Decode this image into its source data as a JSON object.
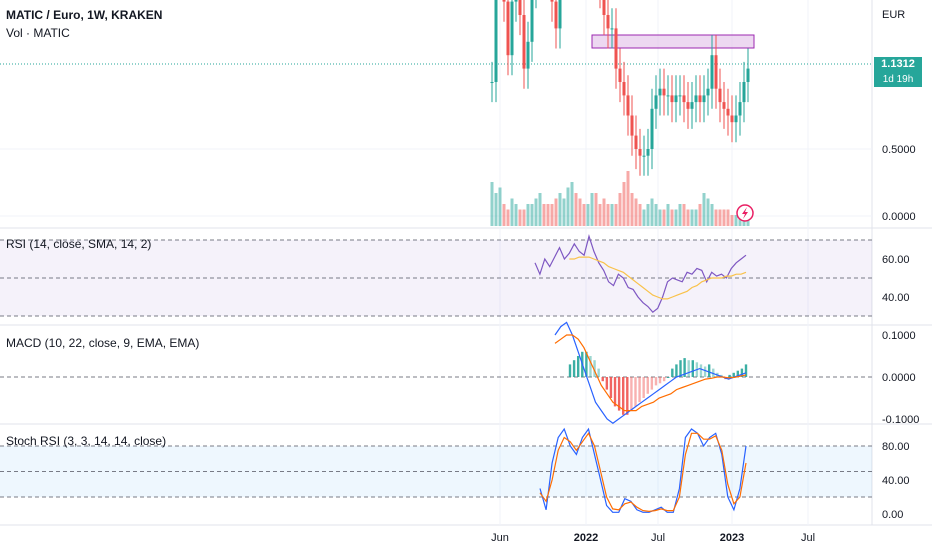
{
  "header": {
    "symbol_line": "MATIC / Euro, 1W, KRAKEN",
    "volume_label": "Vol · MATIC"
  },
  "price_tag": {
    "price": "1.1312",
    "countdown": "1d 19h"
  },
  "colors": {
    "up": "#26a69a",
    "down": "#ef5350",
    "rsi": "#7e57c2",
    "rsi_ma": "#f9c24a",
    "macd": "#2962ff",
    "signal": "#ff6d00",
    "stoch_k": "#2962ff",
    "stoch_d": "#ff6d00",
    "zone": "#e1bee7"
  },
  "chart_data": [
    {
      "type": "candlestick",
      "name_panel": "price",
      "currency": "EUR",
      "y_ticks": [
        "0.5000",
        "0.0000"
      ],
      "x_ticks": [
        "Jun",
        "2022",
        "Jul",
        "2023",
        "Jul"
      ],
      "last_price": 1.1312,
      "resistance_zone": [
        1.25,
        1.45
      ],
      "candles_close_approx": [
        1.0,
        1.8,
        2.2,
        1.6,
        1.2,
        1.6,
        1.9,
        1.5,
        1.1,
        1.3,
        1.7,
        1.9,
        2.3,
        2.2,
        1.9,
        1.6,
        1.4,
        1.8,
        2.1,
        2.3,
        2.5,
        2.2,
        2.0,
        1.8,
        2.0,
        2.2,
        1.9,
        1.7,
        1.5,
        1.4,
        1.4,
        1.1,
        1.0,
        0.9,
        0.75,
        0.6,
        0.5,
        0.45,
        0.45,
        0.5,
        0.8,
        0.9,
        0.95,
        0.9,
        0.9,
        0.85,
        0.9,
        0.9,
        0.85,
        0.8,
        0.85,
        0.9,
        0.85,
        0.9,
        0.95,
        1.2,
        0.95,
        0.85,
        0.8,
        0.75,
        0.7,
        0.75,
        0.85,
        1.0,
        1.1
      ],
      "volume_approx": [
        0.4,
        0.3,
        0.35,
        0.2,
        0.15,
        0.25,
        0.2,
        0.15,
        0.15,
        0.2,
        0.2,
        0.25,
        0.3,
        0.2,
        0.2,
        0.2,
        0.25,
        0.3,
        0.25,
        0.35,
        0.4,
        0.3,
        0.25,
        0.2,
        0.2,
        0.3,
        0.3,
        0.2,
        0.25,
        0.2,
        0.2,
        0.2,
        0.3,
        0.4,
        0.5,
        0.3,
        0.25,
        0.2,
        0.15,
        0.2,
        0.25,
        0.2,
        0.15,
        0.15,
        0.2,
        0.15,
        0.15,
        0.2,
        0.2,
        0.15,
        0.15,
        0.15,
        0.2,
        0.3,
        0.25,
        0.2,
        0.15,
        0.15,
        0.15,
        0.15,
        0.1,
        0.1,
        0.1,
        0.1,
        0.1
      ]
    },
    {
      "type": "line",
      "name_panel": "rsi",
      "title": "RSI (14, close, SMA, 14, 2)",
      "y_ticks": [
        "60.00",
        "40.00"
      ],
      "ylim": [
        30,
        75
      ],
      "bands": [
        70,
        50,
        30
      ],
      "series": [
        {
          "name": "RSI",
          "values": [
            58,
            52,
            60,
            56,
            61,
            66,
            60,
            63,
            68,
            64,
            62,
            72,
            64,
            58,
            54,
            48,
            46,
            52,
            50,
            45,
            44,
            40,
            37,
            35,
            32,
            34,
            40,
            48,
            50,
            49,
            48,
            53,
            52,
            55,
            54,
            48,
            53,
            51,
            52,
            50,
            55,
            58,
            60,
            62
          ]
        },
        {
          "name": "RSI MA",
          "values": [
            null,
            null,
            null,
            null,
            null,
            null,
            null,
            60,
            60,
            61,
            61,
            61,
            60,
            59,
            58,
            56,
            55,
            54,
            53,
            51,
            49,
            47,
            45,
            43,
            41,
            40,
            39,
            39,
            40,
            41,
            42,
            43,
            45,
            46,
            48,
            49,
            50,
            50,
            50,
            51,
            51,
            52,
            52,
            53
          ]
        }
      ]
    },
    {
      "type": "bar",
      "name_panel": "macd",
      "title": "MACD (10, 22, close, 9, EMA, EMA)",
      "y_ticks": [
        "0.1000",
        "0.0000",
        "-0.1000"
      ],
      "ylim": [
        -0.11,
        0.12
      ],
      "histogram": [
        0.03,
        0.04,
        0.05,
        0.06,
        0.06,
        0.05,
        0.04,
        0.02,
        -0.01,
        -0.03,
        -0.05,
        -0.07,
        -0.08,
        -0.09,
        -0.09,
        -0.08,
        -0.07,
        -0.06,
        -0.05,
        -0.04,
        -0.03,
        -0.02,
        -0.015,
        -0.01,
        0.0,
        0.02,
        0.03,
        0.04,
        0.045,
        0.04,
        0.04,
        0.035,
        0.03,
        0.025,
        0.03,
        0.02,
        0.01,
        0.005,
        -0.005,
        0.005,
        0.01,
        0.015,
        0.02,
        0.03
      ],
      "series": [
        {
          "name": "MACD",
          "values": [
            0.1,
            0.12,
            0.13,
            0.1,
            0.06,
            0.02,
            -0.02,
            -0.06,
            -0.08,
            -0.1,
            -0.11,
            -0.1,
            -0.09,
            -0.08,
            -0.07,
            -0.06,
            -0.05,
            -0.04,
            -0.03,
            -0.02,
            -0.01,
            0.0,
            0.005,
            0.01,
            0.015,
            0.02,
            0.015,
            0.01,
            0.005,
            0.0,
            -0.005,
            0.0,
            0.005,
            0.01
          ]
        },
        {
          "name": "Signal",
          "values": [
            0.08,
            0.09,
            0.1,
            0.1,
            0.09,
            0.07,
            0.04,
            0.01,
            -0.02,
            -0.04,
            -0.06,
            -0.07,
            -0.08,
            -0.08,
            -0.08,
            -0.07,
            -0.065,
            -0.06,
            -0.05,
            -0.045,
            -0.04,
            -0.03,
            -0.025,
            -0.02,
            -0.015,
            -0.01,
            -0.005,
            -0.003,
            0.0,
            0.0,
            -0.002,
            -0.001,
            0.002,
            0.005
          ]
        }
      ]
    },
    {
      "type": "line",
      "name_panel": "stoch",
      "title": "Stoch RSI (3, 3, 14, 14, close)",
      "y_ticks": [
        "80.00",
        "40.00",
        "0.00"
      ],
      "ylim": [
        -5,
        105
      ],
      "bands": [
        80,
        50,
        20
      ],
      "series": [
        {
          "name": "K",
          "values": [
            30,
            5,
            60,
            90,
            100,
            80,
            70,
            90,
            100,
            70,
            40,
            10,
            2,
            2,
            18,
            15,
            5,
            2,
            2,
            5,
            8,
            2,
            2,
            30,
            90,
            100,
            95,
            80,
            90,
            95,
            70,
            20,
            5,
            30,
            80
          ]
        },
        {
          "name": "D",
          "values": [
            25,
            15,
            40,
            75,
            90,
            85,
            75,
            85,
            95,
            80,
            50,
            20,
            6,
            5,
            12,
            14,
            8,
            4,
            3,
            4,
            6,
            4,
            4,
            20,
            70,
            95,
            95,
            88,
            88,
            92,
            75,
            35,
            12,
            20,
            60
          ]
        }
      ]
    }
  ]
}
